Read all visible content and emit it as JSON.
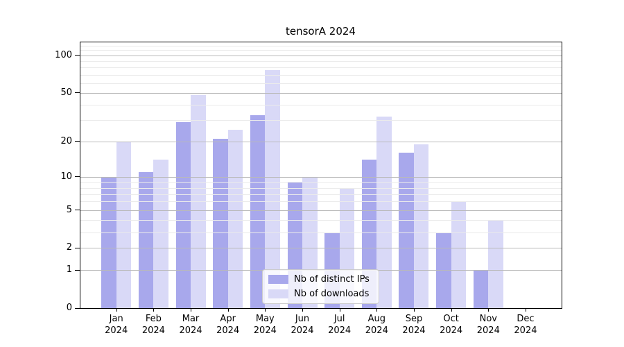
{
  "title": "tensorA 2024",
  "chart_data": {
    "type": "bar",
    "title": "tensorA 2024",
    "categories": [
      "Jan 2024",
      "Feb 2024",
      "Mar 2024",
      "Apr 2024",
      "May 2024",
      "Jun 2024",
      "Jul 2024",
      "Aug 2024",
      "Sep 2024",
      "Oct 2024",
      "Nov 2024",
      "Dec 2024"
    ],
    "series": [
      {
        "name": "Nb of distinct IPs",
        "color": "#a8a8ec",
        "values": [
          10,
          11,
          29,
          21,
          33,
          9,
          3,
          14,
          16,
          3,
          1,
          0
        ]
      },
      {
        "name": "Nb of downloads",
        "color": "#d9d9f7",
        "values": [
          20,
          14,
          48,
          25,
          76,
          10,
          8,
          32,
          19,
          6,
          4,
          0
        ]
      }
    ],
    "xlabel": "",
    "ylabel": "",
    "yscale": "log1p",
    "ylim": [
      0,
      128
    ],
    "y_ticks_labeled": [
      0,
      1,
      2,
      5,
      10,
      20,
      50,
      100
    ],
    "y_ticks_minor": [
      3,
      4,
      6,
      7,
      8,
      9,
      30,
      40,
      60,
      70,
      80,
      90,
      110,
      120
    ],
    "grid": true,
    "grid_color_major": "#b9b9b9",
    "grid_color_minor": "#ebebeb",
    "legend_position": "lower center"
  },
  "legend": {
    "item1": "Nb of distinct IPs",
    "item2": "Nb of downloads"
  }
}
